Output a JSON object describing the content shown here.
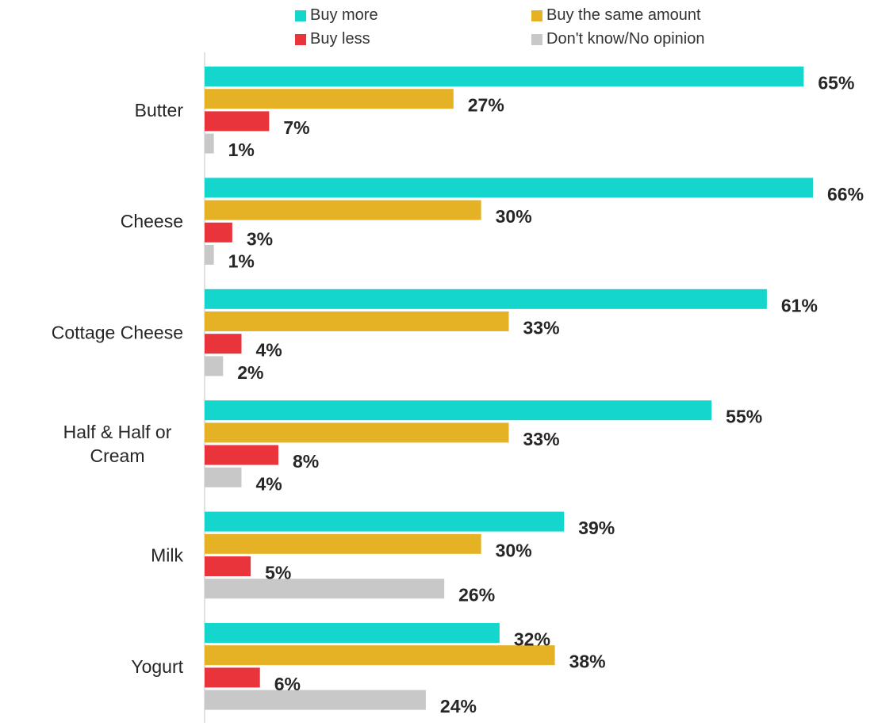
{
  "chart_data": {
    "type": "bar",
    "orientation": "horizontal",
    "categories": [
      [
        "Butter"
      ],
      [
        "Cheese"
      ],
      [
        "Cottage Cheese"
      ],
      [
        "Half & Half or",
        "Cream"
      ],
      [
        "Milk"
      ],
      [
        "Yogurt"
      ]
    ],
    "series": [
      {
        "name": "Buy more",
        "color": "#14d6cc",
        "values": [
          65,
          66,
          61,
          55,
          39,
          32
        ]
      },
      {
        "name": "Buy the same amount",
        "color": "#e5b125",
        "values": [
          27,
          30,
          33,
          33,
          30,
          38
        ]
      },
      {
        "name": "Buy less",
        "color": "#e8343a",
        "values": [
          7,
          3,
          4,
          8,
          5,
          6
        ]
      },
      {
        "name": "Don't know/No opinion",
        "color": "#c8c8c8",
        "values": [
          1,
          1,
          2,
          4,
          26,
          24
        ]
      }
    ],
    "value_suffix": "%",
    "xlim": [
      0,
      66
    ],
    "legend_position": "top",
    "grid": false
  }
}
